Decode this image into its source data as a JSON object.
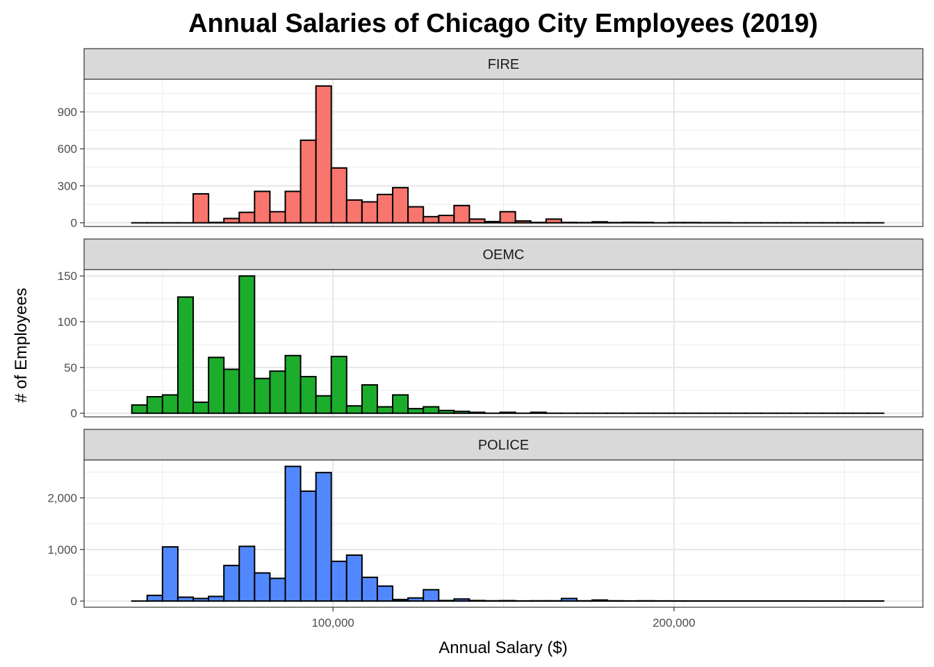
{
  "chart_data": {
    "type": "bar",
    "title": "Annual Salaries of Chicago City Employees (2019)",
    "xlabel": "Annual Salary ($)",
    "ylabel": "# of Employees",
    "grid": true,
    "legend": "none",
    "x_ticks": [
      100000,
      200000
    ],
    "x_tick_labels": [
      "100,000",
      "200,000"
    ],
    "xlim": [
      27000,
      273000
    ],
    "bin_width": 4500,
    "bin_start": 41000,
    "bin_count": 49,
    "panels": [
      {
        "name": "FIRE",
        "color": "#F8766D",
        "ylim": [
          -30,
          1165
        ],
        "y_ticks": [
          0,
          300,
          600,
          900
        ],
        "y_tick_labels": [
          "0",
          "300",
          "600",
          "900"
        ],
        "values": [
          0,
          0,
          0,
          0,
          235,
          3,
          35,
          85,
          255,
          90,
          255,
          670,
          1110,
          445,
          185,
          170,
          230,
          285,
          130,
          50,
          60,
          140,
          30,
          10,
          90,
          15,
          3,
          30,
          3,
          2,
          8,
          2,
          4,
          3,
          0,
          2,
          2,
          1,
          1,
          0,
          0,
          0,
          0,
          0,
          0,
          0,
          0,
          0,
          0
        ]
      },
      {
        "name": "OEMC",
        "color": "#1CAD2C",
        "ylim": [
          -4,
          157
        ],
        "y_ticks": [
          0,
          50,
          100,
          150
        ],
        "y_tick_labels": [
          "0",
          "50",
          "100",
          "150"
        ],
        "values": [
          9,
          18,
          20,
          127,
          12,
          61,
          48,
          150,
          38,
          46,
          63,
          40,
          19,
          62,
          8,
          31,
          7,
          20,
          5,
          7,
          3,
          2,
          1,
          0,
          1,
          0,
          1,
          0,
          0,
          0,
          0,
          0,
          0,
          0,
          0,
          0,
          0,
          0,
          0,
          0,
          0,
          0,
          0,
          0,
          0,
          0,
          0,
          0,
          0
        ]
      },
      {
        "name": "POLICE",
        "color": "#5288FF",
        "ylim": [
          -120,
          2735
        ],
        "y_ticks": [
          0,
          1000,
          2000
        ],
        "y_tick_labels": [
          "0",
          "1,000",
          "2,000"
        ],
        "values": [
          0,
          110,
          1050,
          75,
          50,
          90,
          690,
          1060,
          545,
          440,
          2610,
          2130,
          2490,
          770,
          890,
          460,
          290,
          30,
          60,
          220,
          10,
          40,
          10,
          5,
          8,
          3,
          5,
          5,
          50,
          5,
          20,
          5,
          3,
          5,
          3,
          3,
          2,
          2,
          2,
          2,
          2,
          2,
          2,
          2,
          1,
          1,
          1,
          1,
          1
        ]
      }
    ]
  }
}
